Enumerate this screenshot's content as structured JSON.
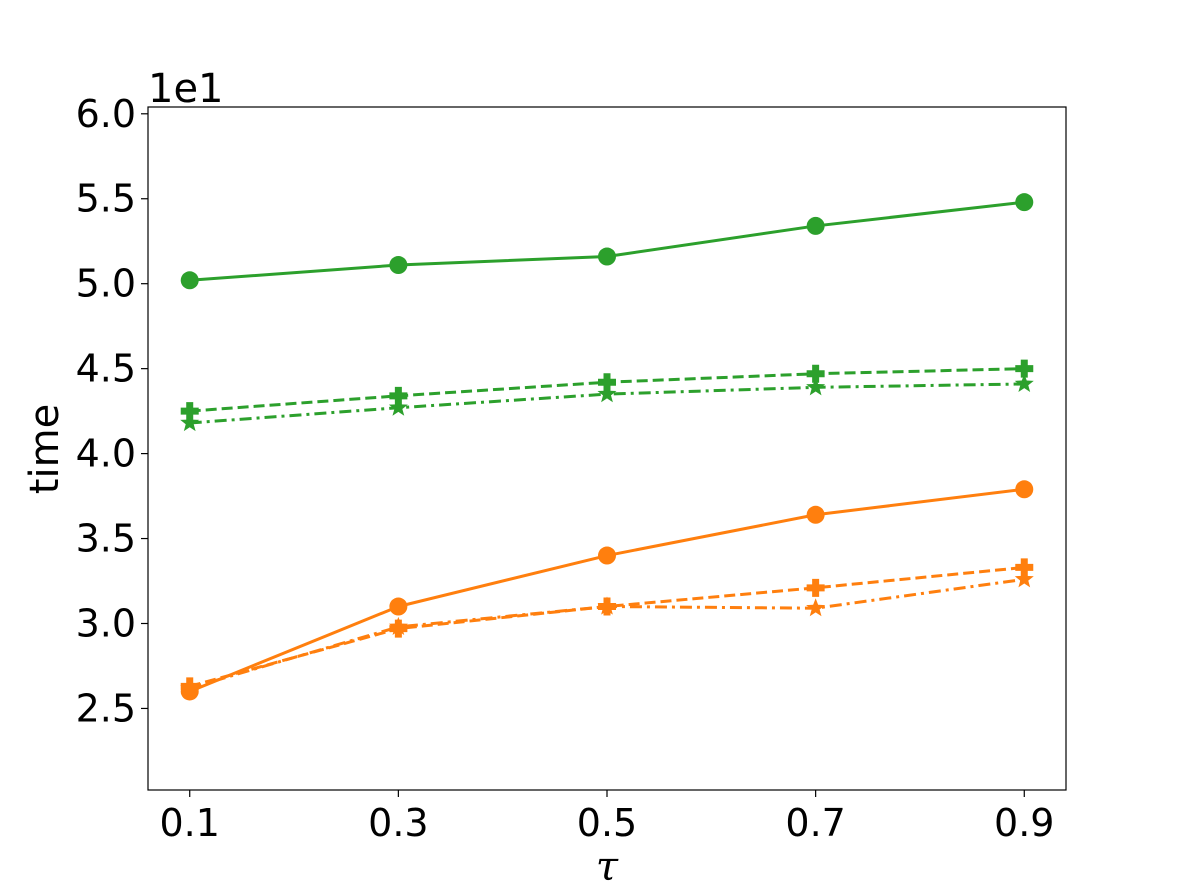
{
  "chart_data": {
    "type": "line",
    "title": "",
    "xlabel": "τ",
    "ylabel": "time",
    "y_multiplier": "1e1",
    "x": [
      0.1,
      0.3,
      0.5,
      0.7,
      0.9
    ],
    "x_tick_labels": [
      "0.1",
      "0.3",
      "0.5",
      "0.7",
      "0.9"
    ],
    "xlim": [
      0.06,
      0.94
    ],
    "y_ticks": [
      2.5,
      3.0,
      3.5,
      4.0,
      4.5,
      5.0,
      5.5,
      6.0
    ],
    "y_tick_labels": [
      "2.5",
      "3.0",
      "3.5",
      "4.0",
      "4.5",
      "5.0",
      "5.5",
      "6.0"
    ],
    "ylim": [
      2.02,
      6.04
    ],
    "grid": false,
    "legend": "none",
    "series": [
      {
        "color": "#2ca02c",
        "line": "solid",
        "marker": "circle",
        "values": [
          5.02,
          5.11,
          5.16,
          5.34,
          5.48
        ]
      },
      {
        "color": "#2ca02c",
        "line": "dashed",
        "marker": "plus",
        "values": [
          4.25,
          4.34,
          4.42,
          4.47,
          4.5
        ]
      },
      {
        "color": "#2ca02c",
        "line": "dashdot",
        "marker": "star",
        "values": [
          4.18,
          4.27,
          4.35,
          4.39,
          4.41
        ]
      },
      {
        "color": "#ff7f0e",
        "line": "solid",
        "marker": "circle",
        "values": [
          2.6,
          3.1,
          3.4,
          3.64,
          3.79
        ]
      },
      {
        "color": "#ff7f0e",
        "line": "dashed",
        "marker": "plus",
        "values": [
          2.63,
          2.97,
          3.1,
          3.21,
          3.33
        ]
      },
      {
        "color": "#ff7f0e",
        "line": "dashdot",
        "marker": "star",
        "values": [
          2.62,
          2.98,
          3.1,
          3.09,
          3.26
        ]
      }
    ]
  }
}
